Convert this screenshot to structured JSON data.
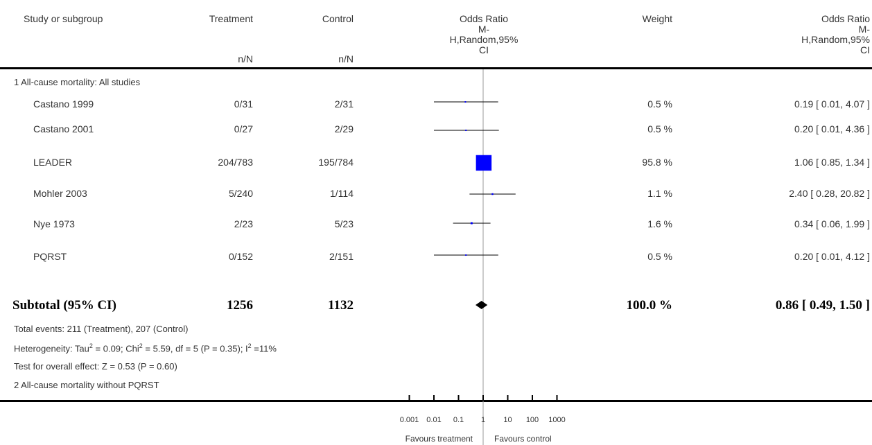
{
  "headers": {
    "study": "Study or subgroup",
    "treatment": "Treatment",
    "control": "Control",
    "treatment_sub": "n/N",
    "control_sub": "n/N",
    "or_plot_line1": "Odds Ratio",
    "or_plot_line2": "M-",
    "or_plot_line3": "H,Random,95%",
    "or_plot_line4": "CI",
    "weight": "Weight",
    "or_text_line1": "Odds Ratio",
    "or_text_line2": "M-",
    "or_text_line3": "H,Random,95%",
    "or_text_line4": "CI"
  },
  "group1_label": "1 All-cause mortality: All studies",
  "studies": [
    {
      "name": "Castano 1999",
      "treatment": "0/31",
      "control": "2/31",
      "weight": "0.5 %",
      "ci_text": "0.19 [ 0.01, 4.07 ]"
    },
    {
      "name": "Castano 2001",
      "treatment": "0/27",
      "control": "2/29",
      "weight": "0.5 %",
      "ci_text": "0.20 [ 0.01, 4.36 ]"
    },
    {
      "name": "LEADER",
      "treatment": "204/783",
      "control": "195/784",
      "weight": "95.8 %",
      "ci_text": "1.06 [ 0.85, 1.34 ]"
    },
    {
      "name": "Mohler 2003",
      "treatment": "5/240",
      "control": "1/114",
      "weight": "1.1 %",
      "ci_text": "2.40 [ 0.28, 20.82 ]"
    },
    {
      "name": "Nye 1973",
      "treatment": "2/23",
      "control": "5/23",
      "weight": "1.6 %",
      "ci_text": "0.34 [ 0.06, 1.99 ]"
    },
    {
      "name": "PQRST",
      "treatment": "0/152",
      "control": "2/151",
      "weight": "0.5 %",
      "ci_text": "0.20 [ 0.01, 4.12 ]"
    }
  ],
  "subtotal": {
    "label": "Subtotal (95% CI)",
    "treatment": "1256",
    "control": "1132",
    "weight": "100.0 %",
    "ci_text": "0.86 [ 0.49, 1.50 ]"
  },
  "notes": {
    "total_events": "Total events: 211 (Treatment), 207 (Control)",
    "heterogeneity_prefix": "Heterogeneity: Tau",
    "heterogeneity_tau_sup": "2",
    "heterogeneity_mid": " = 0.09; Chi",
    "heterogeneity_chi_sup": "2",
    "heterogeneity_mid2": " = 5.59, df = 5 (P = 0.35); I",
    "heterogeneity_i_sup": "2",
    "heterogeneity_end": " =11%",
    "overall_effect": "Test for overall effect: Z = 0.53 (P = 0.60)",
    "group2_label": "2 All-cause mortality without PQRST"
  },
  "axis": {
    "tick_labels": [
      "0.001",
      "0.01",
      "0.1",
      "1",
      "10",
      "100",
      "1000"
    ],
    "favours_left": "Favours treatment",
    "favours_right": "Favours control"
  },
  "colors": {
    "study_box": "#0000ff",
    "line": "#000000"
  },
  "chart_data": {
    "type": "forest",
    "scale": "log",
    "xlim": [
      0.001,
      1000
    ],
    "null_line": 1,
    "xticks": [
      0.001,
      0.01,
      0.1,
      1,
      10,
      100,
      1000
    ],
    "series": [
      {
        "name": "Castano 1999",
        "or": 0.19,
        "lo": 0.01,
        "hi": 4.07,
        "weight": 0.5
      },
      {
        "name": "Castano 2001",
        "or": 0.2,
        "lo": 0.01,
        "hi": 4.36,
        "weight": 0.5
      },
      {
        "name": "LEADER",
        "or": 1.06,
        "lo": 0.85,
        "hi": 1.34,
        "weight": 95.8
      },
      {
        "name": "Mohler 2003",
        "or": 2.4,
        "lo": 0.28,
        "hi": 20.82,
        "weight": 1.1
      },
      {
        "name": "Nye 1973",
        "or": 0.34,
        "lo": 0.06,
        "hi": 1.99,
        "weight": 1.6
      },
      {
        "name": "PQRST",
        "or": 0.2,
        "lo": 0.01,
        "hi": 4.12,
        "weight": 0.5
      }
    ],
    "pooled": {
      "name": "Subtotal (95% CI)",
      "or": 0.86,
      "lo": 0.49,
      "hi": 1.5,
      "weight": 100.0
    }
  }
}
